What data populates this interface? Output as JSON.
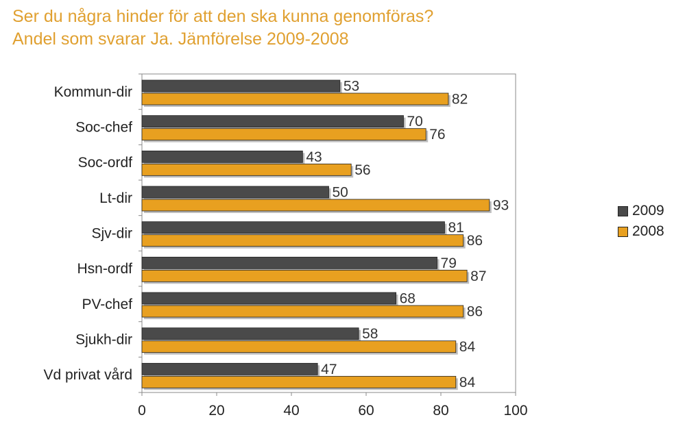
{
  "chart_data": {
    "type": "bar",
    "orientation": "horizontal",
    "title": "Ser du några hinder för att den ska kunna genomföras?",
    "subtitle": "Andel som svarar Ja. Jämförelse 2009-2008",
    "categories": [
      "Kommun-dir",
      "Soc-chef",
      "Soc-ordf",
      "Lt-dir",
      "Sjv-dir",
      "Hsn-ordf",
      "PV-chef",
      "Sjukh-dir",
      "Vd privat vård"
    ],
    "series": [
      {
        "name": "2009",
        "color": "#4A4A4A",
        "values": [
          53,
          70,
          43,
          50,
          81,
          79,
          68,
          58,
          47
        ]
      },
      {
        "name": "2008",
        "color": "#E8A020",
        "values": [
          82,
          76,
          56,
          93,
          86,
          87,
          86,
          84,
          84
        ]
      }
    ],
    "xlim": [
      0,
      100
    ],
    "xticks": [
      "0",
      "20",
      "40",
      "60",
      "80",
      "100"
    ],
    "xlabel": "",
    "ylabel": "",
    "grid": false,
    "legend": "right"
  }
}
